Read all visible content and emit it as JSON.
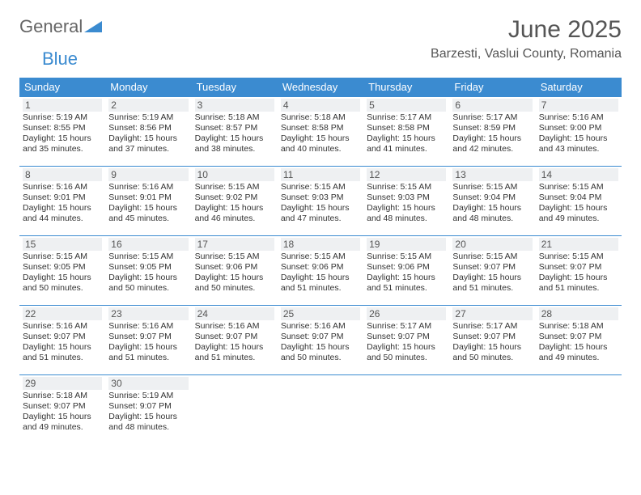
{
  "brand": {
    "general": "General",
    "blue": "Blue"
  },
  "title": "June 2025",
  "location": "Barzesti, Vaslui County, Romania",
  "colors": {
    "header_bg": "#3b8bd0",
    "header_fg": "#ffffff",
    "daynum_bg": "#eef0f2",
    "text": "#333333",
    "border": "#3b8bd0"
  },
  "weekdays": [
    "Sunday",
    "Monday",
    "Tuesday",
    "Wednesday",
    "Thursday",
    "Friday",
    "Saturday"
  ],
  "days": [
    {
      "n": 1,
      "sr": "5:19 AM",
      "ss": "8:55 PM",
      "dl": "15 hours and 35 minutes."
    },
    {
      "n": 2,
      "sr": "5:19 AM",
      "ss": "8:56 PM",
      "dl": "15 hours and 37 minutes."
    },
    {
      "n": 3,
      "sr": "5:18 AM",
      "ss": "8:57 PM",
      "dl": "15 hours and 38 minutes."
    },
    {
      "n": 4,
      "sr": "5:18 AM",
      "ss": "8:58 PM",
      "dl": "15 hours and 40 minutes."
    },
    {
      "n": 5,
      "sr": "5:17 AM",
      "ss": "8:58 PM",
      "dl": "15 hours and 41 minutes."
    },
    {
      "n": 6,
      "sr": "5:17 AM",
      "ss": "8:59 PM",
      "dl": "15 hours and 42 minutes."
    },
    {
      "n": 7,
      "sr": "5:16 AM",
      "ss": "9:00 PM",
      "dl": "15 hours and 43 minutes."
    },
    {
      "n": 8,
      "sr": "5:16 AM",
      "ss": "9:01 PM",
      "dl": "15 hours and 44 minutes."
    },
    {
      "n": 9,
      "sr": "5:16 AM",
      "ss": "9:01 PM",
      "dl": "15 hours and 45 minutes."
    },
    {
      "n": 10,
      "sr": "5:15 AM",
      "ss": "9:02 PM",
      "dl": "15 hours and 46 minutes."
    },
    {
      "n": 11,
      "sr": "5:15 AM",
      "ss": "9:03 PM",
      "dl": "15 hours and 47 minutes."
    },
    {
      "n": 12,
      "sr": "5:15 AM",
      "ss": "9:03 PM",
      "dl": "15 hours and 48 minutes."
    },
    {
      "n": 13,
      "sr": "5:15 AM",
      "ss": "9:04 PM",
      "dl": "15 hours and 48 minutes."
    },
    {
      "n": 14,
      "sr": "5:15 AM",
      "ss": "9:04 PM",
      "dl": "15 hours and 49 minutes."
    },
    {
      "n": 15,
      "sr": "5:15 AM",
      "ss": "9:05 PM",
      "dl": "15 hours and 50 minutes."
    },
    {
      "n": 16,
      "sr": "5:15 AM",
      "ss": "9:05 PM",
      "dl": "15 hours and 50 minutes."
    },
    {
      "n": 17,
      "sr": "5:15 AM",
      "ss": "9:06 PM",
      "dl": "15 hours and 50 minutes."
    },
    {
      "n": 18,
      "sr": "5:15 AM",
      "ss": "9:06 PM",
      "dl": "15 hours and 51 minutes."
    },
    {
      "n": 19,
      "sr": "5:15 AM",
      "ss": "9:06 PM",
      "dl": "15 hours and 51 minutes."
    },
    {
      "n": 20,
      "sr": "5:15 AM",
      "ss": "9:07 PM",
      "dl": "15 hours and 51 minutes."
    },
    {
      "n": 21,
      "sr": "5:15 AM",
      "ss": "9:07 PM",
      "dl": "15 hours and 51 minutes."
    },
    {
      "n": 22,
      "sr": "5:16 AM",
      "ss": "9:07 PM",
      "dl": "15 hours and 51 minutes."
    },
    {
      "n": 23,
      "sr": "5:16 AM",
      "ss": "9:07 PM",
      "dl": "15 hours and 51 minutes."
    },
    {
      "n": 24,
      "sr": "5:16 AM",
      "ss": "9:07 PM",
      "dl": "15 hours and 51 minutes."
    },
    {
      "n": 25,
      "sr": "5:16 AM",
      "ss": "9:07 PM",
      "dl": "15 hours and 50 minutes."
    },
    {
      "n": 26,
      "sr": "5:17 AM",
      "ss": "9:07 PM",
      "dl": "15 hours and 50 minutes."
    },
    {
      "n": 27,
      "sr": "5:17 AM",
      "ss": "9:07 PM",
      "dl": "15 hours and 50 minutes."
    },
    {
      "n": 28,
      "sr": "5:18 AM",
      "ss": "9:07 PM",
      "dl": "15 hours and 49 minutes."
    },
    {
      "n": 29,
      "sr": "5:18 AM",
      "ss": "9:07 PM",
      "dl": "15 hours and 49 minutes."
    },
    {
      "n": 30,
      "sr": "5:19 AM",
      "ss": "9:07 PM",
      "dl": "15 hours and 48 minutes."
    }
  ],
  "labels": {
    "sunrise": "Sunrise:",
    "sunset": "Sunset:",
    "daylight": "Daylight:"
  }
}
